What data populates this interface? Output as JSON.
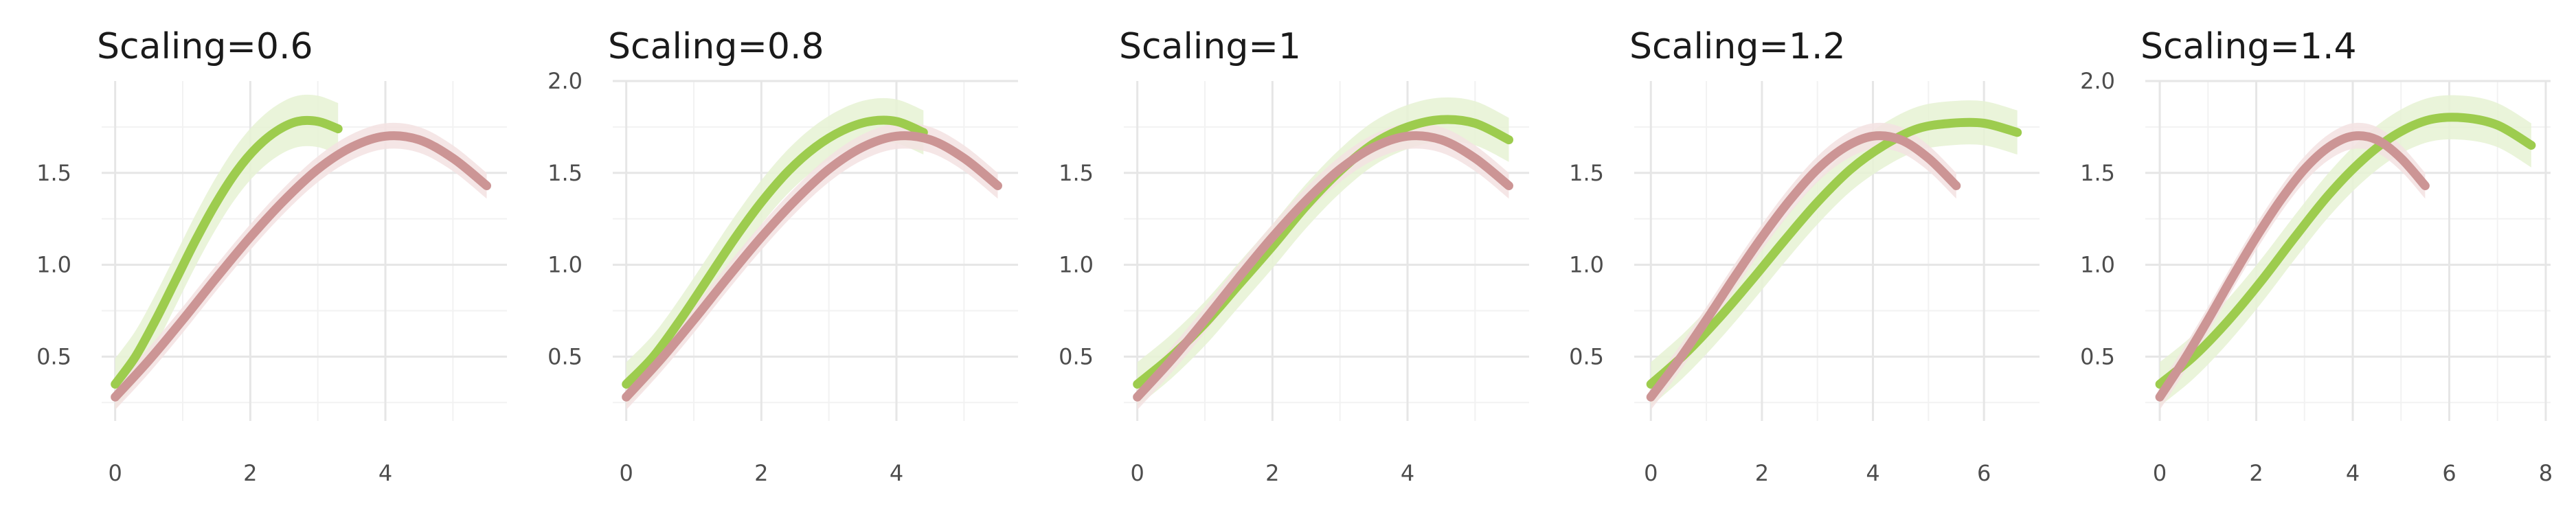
{
  "colors": {
    "green": "#9dcc4e",
    "green_band": "#e6f2d3",
    "pink": "#cc9595",
    "pink_band": "#f3e2e2",
    "grid_major": "#e6e6e6",
    "grid_minor": "#f2f2f2",
    "text": "#1a1a1a",
    "tick_text": "#4d4d4d"
  },
  "chart_data": [
    {
      "type": "line",
      "title": "Scaling=0.6",
      "xlim": [
        -0.2,
        5.8
      ],
      "ylim": [
        0.15,
        2.0
      ],
      "xticks": [
        0,
        2,
        4
      ],
      "xtick_labels": [
        "0",
        "2",
        "4"
      ],
      "yticks": [
        0.5,
        1.0,
        1.5
      ],
      "ytick_labels": [
        "0.5",
        "1.0",
        "1.5"
      ],
      "grid": true,
      "series": [
        {
          "color": "green",
          "band": 0.14,
          "points": [
            [
              0,
              0.35
            ],
            [
              0.3,
              0.5
            ],
            [
              0.6,
              0.7
            ],
            [
              0.9,
              0.92
            ],
            [
              1.2,
              1.14
            ],
            [
              1.5,
              1.34
            ],
            [
              1.8,
              1.51
            ],
            [
              2.1,
              1.64
            ],
            [
              2.4,
              1.73
            ],
            [
              2.7,
              1.78
            ],
            [
              3.0,
              1.78
            ],
            [
              3.3,
              1.74
            ]
          ]
        },
        {
          "color": "pink",
          "band": 0.07,
          "points": [
            [
              0,
              0.28
            ],
            [
              0.5,
              0.48
            ],
            [
              1.0,
              0.7
            ],
            [
              1.5,
              0.93
            ],
            [
              2.0,
              1.15
            ],
            [
              2.5,
              1.35
            ],
            [
              3.0,
              1.52
            ],
            [
              3.5,
              1.64
            ],
            [
              4.0,
              1.7
            ],
            [
              4.5,
              1.68
            ],
            [
              5.0,
              1.58
            ],
            [
              5.5,
              1.43
            ]
          ]
        }
      ]
    },
    {
      "type": "line",
      "title": "Scaling=0.8",
      "xlim": [
        -0.2,
        5.8
      ],
      "ylim": [
        0.15,
        2.0
      ],
      "xticks": [
        0,
        2,
        4
      ],
      "xtick_labels": [
        "0",
        "2",
        "4"
      ],
      "yticks": [
        0.5,
        1.0,
        1.5,
        2.0
      ],
      "ytick_labels": [
        "0.5",
        "1.0",
        "1.5",
        "2.0"
      ],
      "grid": true,
      "series": [
        {
          "color": "green",
          "band": 0.12,
          "points": [
            [
              0,
              0.35
            ],
            [
              0.4,
              0.5
            ],
            [
              0.8,
              0.7
            ],
            [
              1.2,
              0.92
            ],
            [
              1.6,
              1.14
            ],
            [
              2.0,
              1.34
            ],
            [
              2.4,
              1.51
            ],
            [
              2.8,
              1.64
            ],
            [
              3.2,
              1.73
            ],
            [
              3.6,
              1.78
            ],
            [
              4.0,
              1.78
            ],
            [
              4.4,
              1.72
            ]
          ]
        },
        {
          "color": "pink",
          "band": 0.07,
          "points": [
            [
              0,
              0.28
            ],
            [
              0.5,
              0.48
            ],
            [
              1.0,
              0.7
            ],
            [
              1.5,
              0.93
            ],
            [
              2.0,
              1.15
            ],
            [
              2.5,
              1.35
            ],
            [
              3.0,
              1.52
            ],
            [
              3.5,
              1.64
            ],
            [
              4.0,
              1.7
            ],
            [
              4.5,
              1.68
            ],
            [
              5.0,
              1.58
            ],
            [
              5.5,
              1.43
            ]
          ]
        }
      ]
    },
    {
      "type": "line",
      "title": "Scaling=1",
      "xlim": [
        -0.2,
        5.8
      ],
      "ylim": [
        0.15,
        2.0
      ],
      "xticks": [
        0,
        2,
        4
      ],
      "xtick_labels": [
        "0",
        "2",
        "4"
      ],
      "yticks": [
        0.5,
        1.0,
        1.5
      ],
      "ytick_labels": [
        "0.5",
        "1.0",
        "1.5"
      ],
      "grid": true,
      "series": [
        {
          "color": "green",
          "band": 0.12,
          "points": [
            [
              0,
              0.35
            ],
            [
              0.5,
              0.5
            ],
            [
              1.0,
              0.68
            ],
            [
              1.5,
              0.89
            ],
            [
              2.0,
              1.1
            ],
            [
              2.5,
              1.32
            ],
            [
              3.0,
              1.51
            ],
            [
              3.5,
              1.66
            ],
            [
              4.0,
              1.75
            ],
            [
              4.5,
              1.79
            ],
            [
              5.0,
              1.77
            ],
            [
              5.5,
              1.68
            ]
          ]
        },
        {
          "color": "pink",
          "band": 0.07,
          "points": [
            [
              0,
              0.28
            ],
            [
              0.5,
              0.48
            ],
            [
              1.0,
              0.7
            ],
            [
              1.5,
              0.93
            ],
            [
              2.0,
              1.15
            ],
            [
              2.5,
              1.35
            ],
            [
              3.0,
              1.52
            ],
            [
              3.5,
              1.64
            ],
            [
              4.0,
              1.7
            ],
            [
              4.5,
              1.68
            ],
            [
              5.0,
              1.58
            ],
            [
              5.5,
              1.43
            ]
          ]
        }
      ]
    },
    {
      "type": "line",
      "title": "Scaling=1.2",
      "xlim": [
        -0.3,
        7.0
      ],
      "ylim": [
        0.15,
        2.0
      ],
      "xticks": [
        0,
        2,
        4,
        6
      ],
      "xtick_labels": [
        "0",
        "2",
        "4",
        "6"
      ],
      "yticks": [
        0.5,
        1.0,
        1.5
      ],
      "ytick_labels": [
        "0.5",
        "1.0",
        "1.5"
      ],
      "grid": true,
      "series": [
        {
          "color": "green",
          "band": 0.12,
          "points": [
            [
              0,
              0.35
            ],
            [
              0.6,
              0.51
            ],
            [
              1.2,
              0.7
            ],
            [
              1.8,
              0.91
            ],
            [
              2.4,
              1.13
            ],
            [
              3.0,
              1.34
            ],
            [
              3.6,
              1.52
            ],
            [
              4.2,
              1.65
            ],
            [
              4.8,
              1.74
            ],
            [
              5.4,
              1.77
            ],
            [
              6.0,
              1.77
            ],
            [
              6.6,
              1.72
            ]
          ]
        },
        {
          "color": "pink",
          "band": 0.07,
          "points": [
            [
              0,
              0.28
            ],
            [
              0.5,
              0.48
            ],
            [
              1.0,
              0.7
            ],
            [
              1.5,
              0.93
            ],
            [
              2.0,
              1.15
            ],
            [
              2.5,
              1.35
            ],
            [
              3.0,
              1.52
            ],
            [
              3.5,
              1.64
            ],
            [
              4.0,
              1.7
            ],
            [
              4.5,
              1.68
            ],
            [
              5.0,
              1.58
            ],
            [
              5.5,
              1.43
            ]
          ]
        }
      ]
    },
    {
      "type": "line",
      "title": "Scaling=1.4",
      "xlim": [
        -0.3,
        8.1
      ],
      "ylim": [
        0.15,
        2.0
      ],
      "xticks": [
        0,
        2,
        4,
        6,
        8
      ],
      "xtick_labels": [
        "0",
        "2",
        "4",
        "6",
        "8"
      ],
      "yticks": [
        0.5,
        1.0,
        1.5,
        2.0
      ],
      "ytick_labels": [
        "0.5",
        "1.0",
        "1.5",
        "2.0"
      ],
      "grid": true,
      "series": [
        {
          "color": "green",
          "band": 0.12,
          "points": [
            [
              0,
              0.35
            ],
            [
              0.7,
              0.5
            ],
            [
              1.4,
              0.69
            ],
            [
              2.1,
              0.91
            ],
            [
              2.8,
              1.15
            ],
            [
              3.5,
              1.38
            ],
            [
              4.2,
              1.57
            ],
            [
              4.9,
              1.71
            ],
            [
              5.6,
              1.79
            ],
            [
              6.3,
              1.8
            ],
            [
              7.0,
              1.76
            ],
            [
              7.7,
              1.65
            ]
          ]
        },
        {
          "color": "pink",
          "band": 0.07,
          "points": [
            [
              0,
              0.28
            ],
            [
              0.5,
              0.48
            ],
            [
              1.0,
              0.7
            ],
            [
              1.5,
              0.93
            ],
            [
              2.0,
              1.15
            ],
            [
              2.5,
              1.35
            ],
            [
              3.0,
              1.52
            ],
            [
              3.5,
              1.64
            ],
            [
              4.0,
              1.7
            ],
            [
              4.5,
              1.68
            ],
            [
              5.0,
              1.58
            ],
            [
              5.5,
              1.43
            ]
          ]
        }
      ]
    }
  ]
}
